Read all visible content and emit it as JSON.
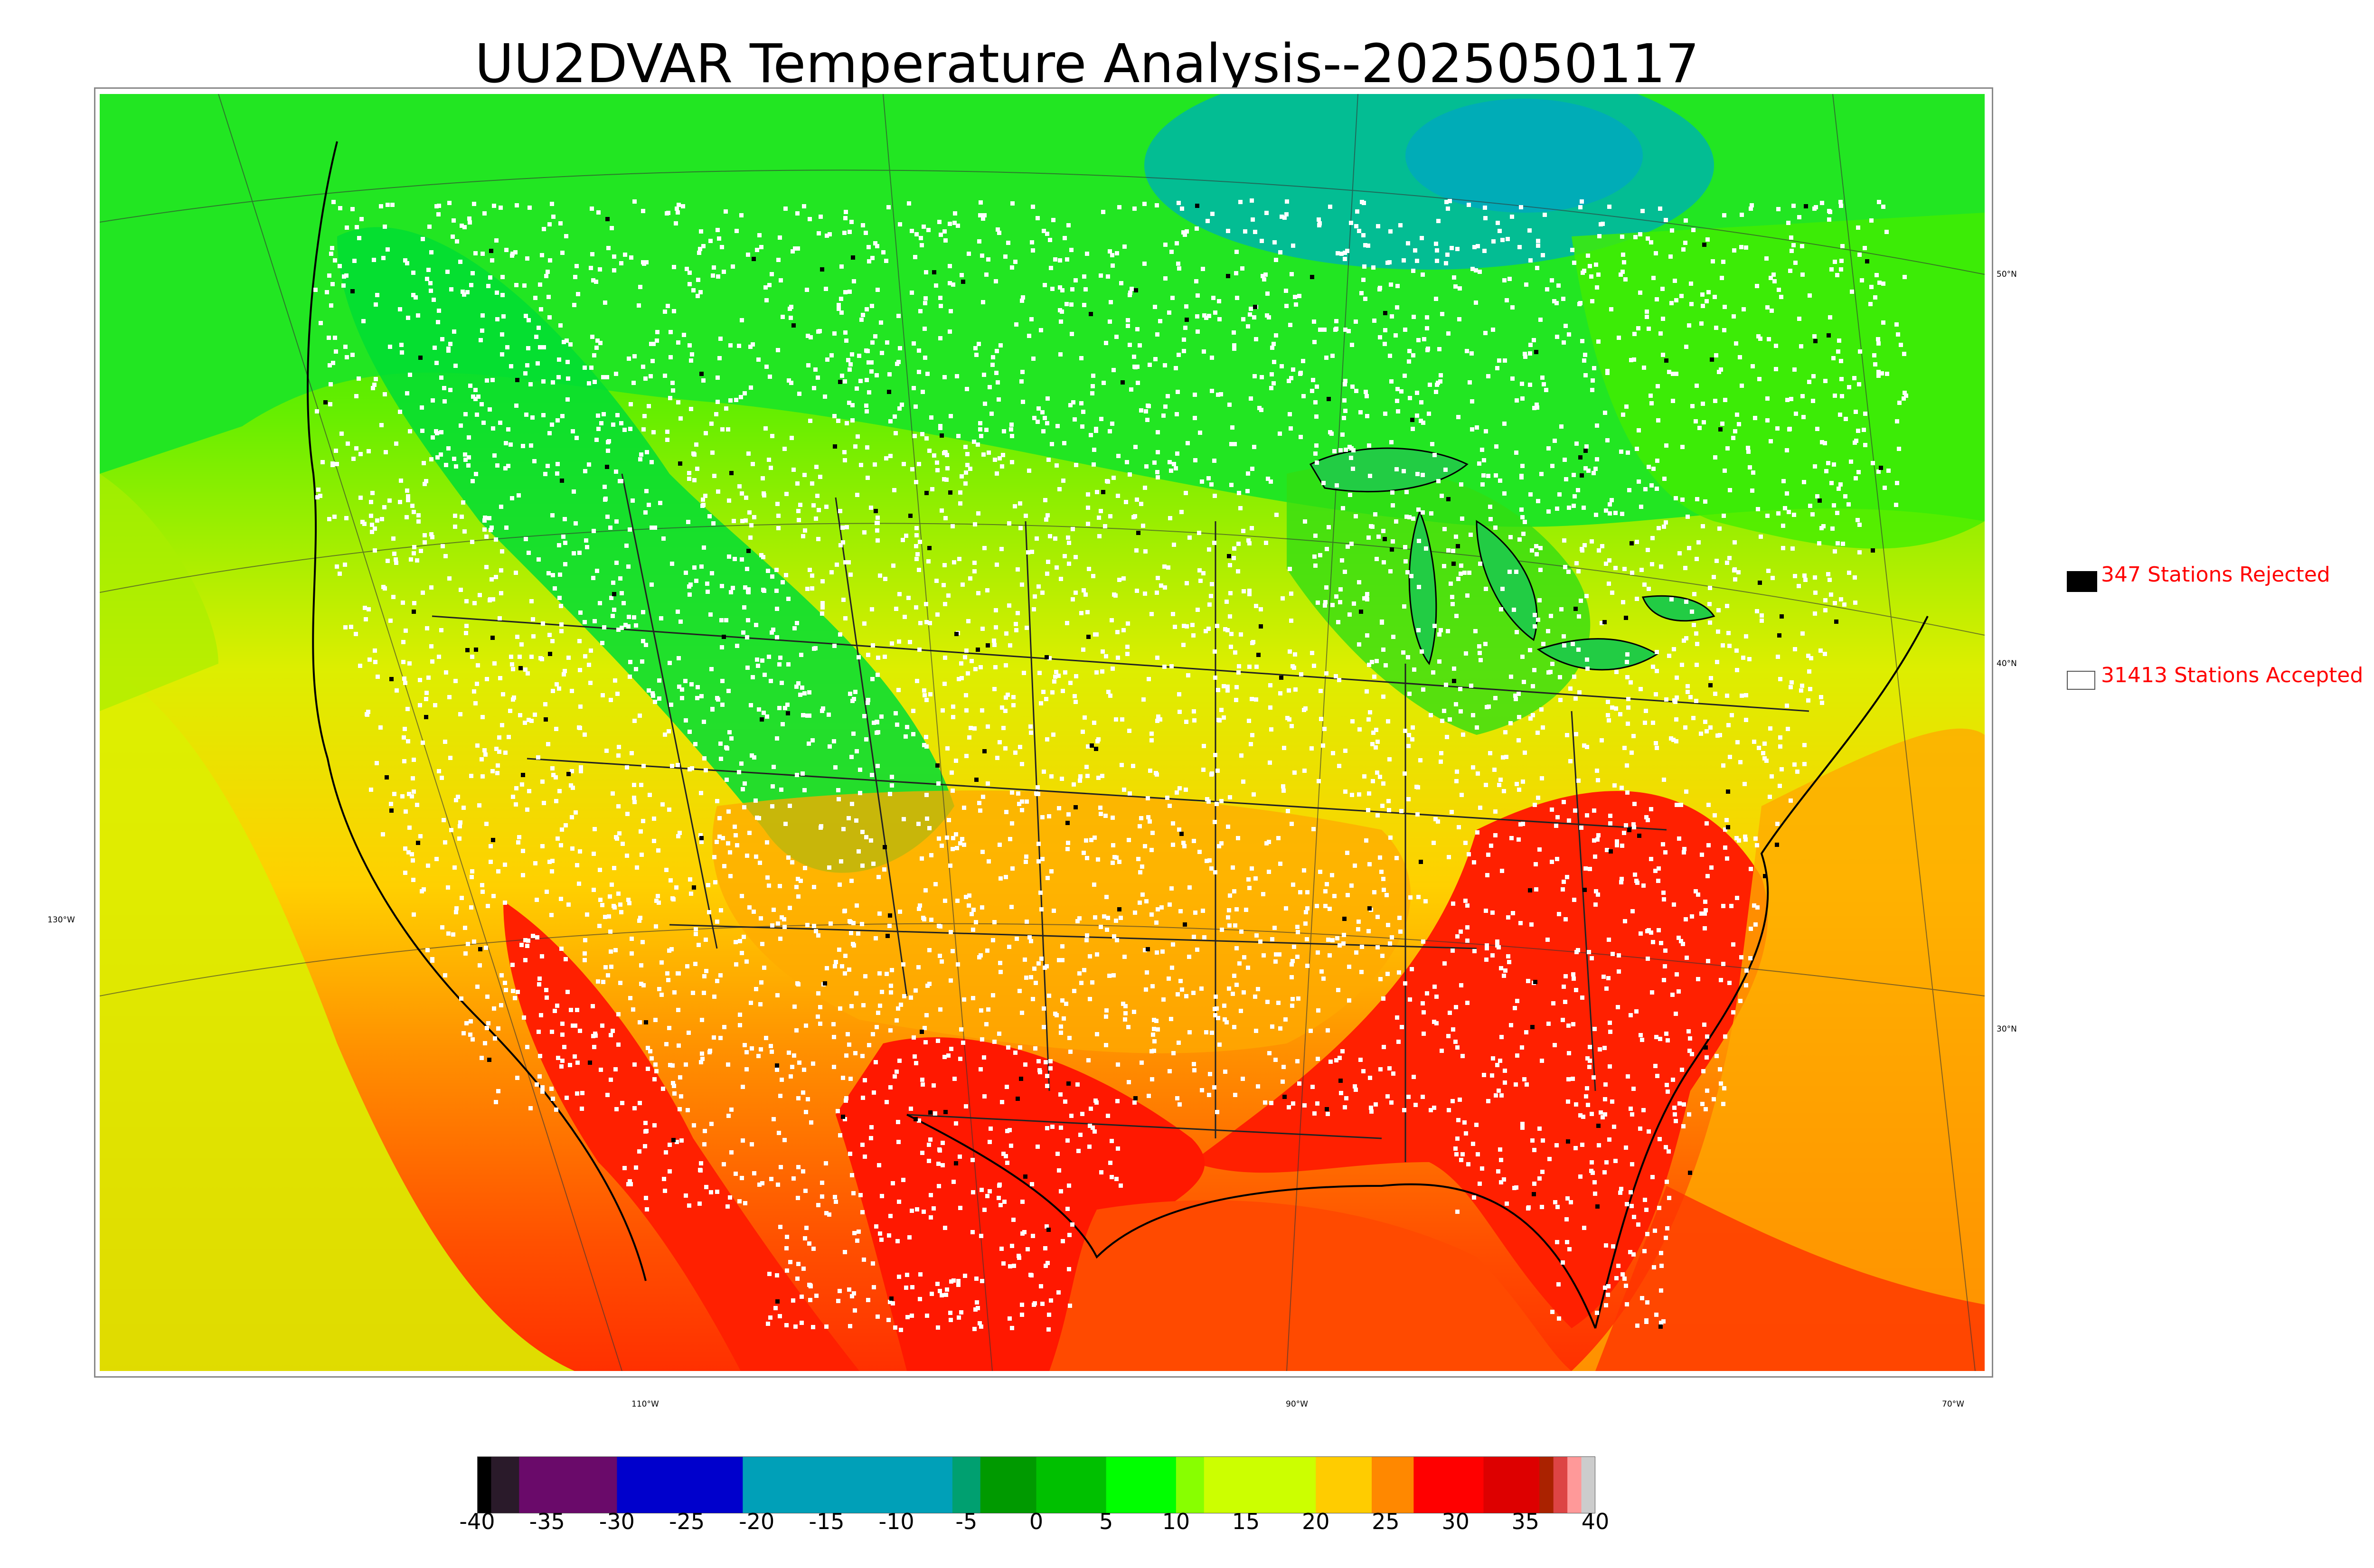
{
  "title": "UU2DVAR Temperature Analysis--2025050117",
  "legend": {
    "rejected_label": "347 Stations Rejected",
    "accepted_label": "31413 Stations Accepted",
    "rejected_color": "#000000",
    "accepted_color": "#ffffff",
    "text_color": "#ff0000"
  },
  "graticule": {
    "longitude_labels": [
      "130°W",
      "110°W",
      "90°W",
      "70°W"
    ],
    "latitude_labels": [
      "50°N",
      "40°N",
      "30°N"
    ]
  },
  "colorbar": {
    "ticks": [
      "-40",
      "-35",
      "-30",
      "-25",
      "-20",
      "-15",
      "-10",
      "-5",
      "0",
      "5",
      "10",
      "15",
      "20",
      "25",
      "30",
      "35",
      "40"
    ],
    "range": [
      -40,
      40
    ],
    "colors": {
      "below_minus_37": "#111111",
      "minus_35_to_minus_30": "#6a0a6a",
      "minus_30_to_minus_20": "#0000cc",
      "minus_20_to_minus_5": "#00a0b8",
      "minus_5_to_5": "#00c000",
      "5_to_10": "#00ff00",
      "10_to_20": "#ccff00",
      "20_to_25": "#ffcc00",
      "25_to_35": "#ff0000",
      "above_37": "#cccccc"
    }
  }
}
